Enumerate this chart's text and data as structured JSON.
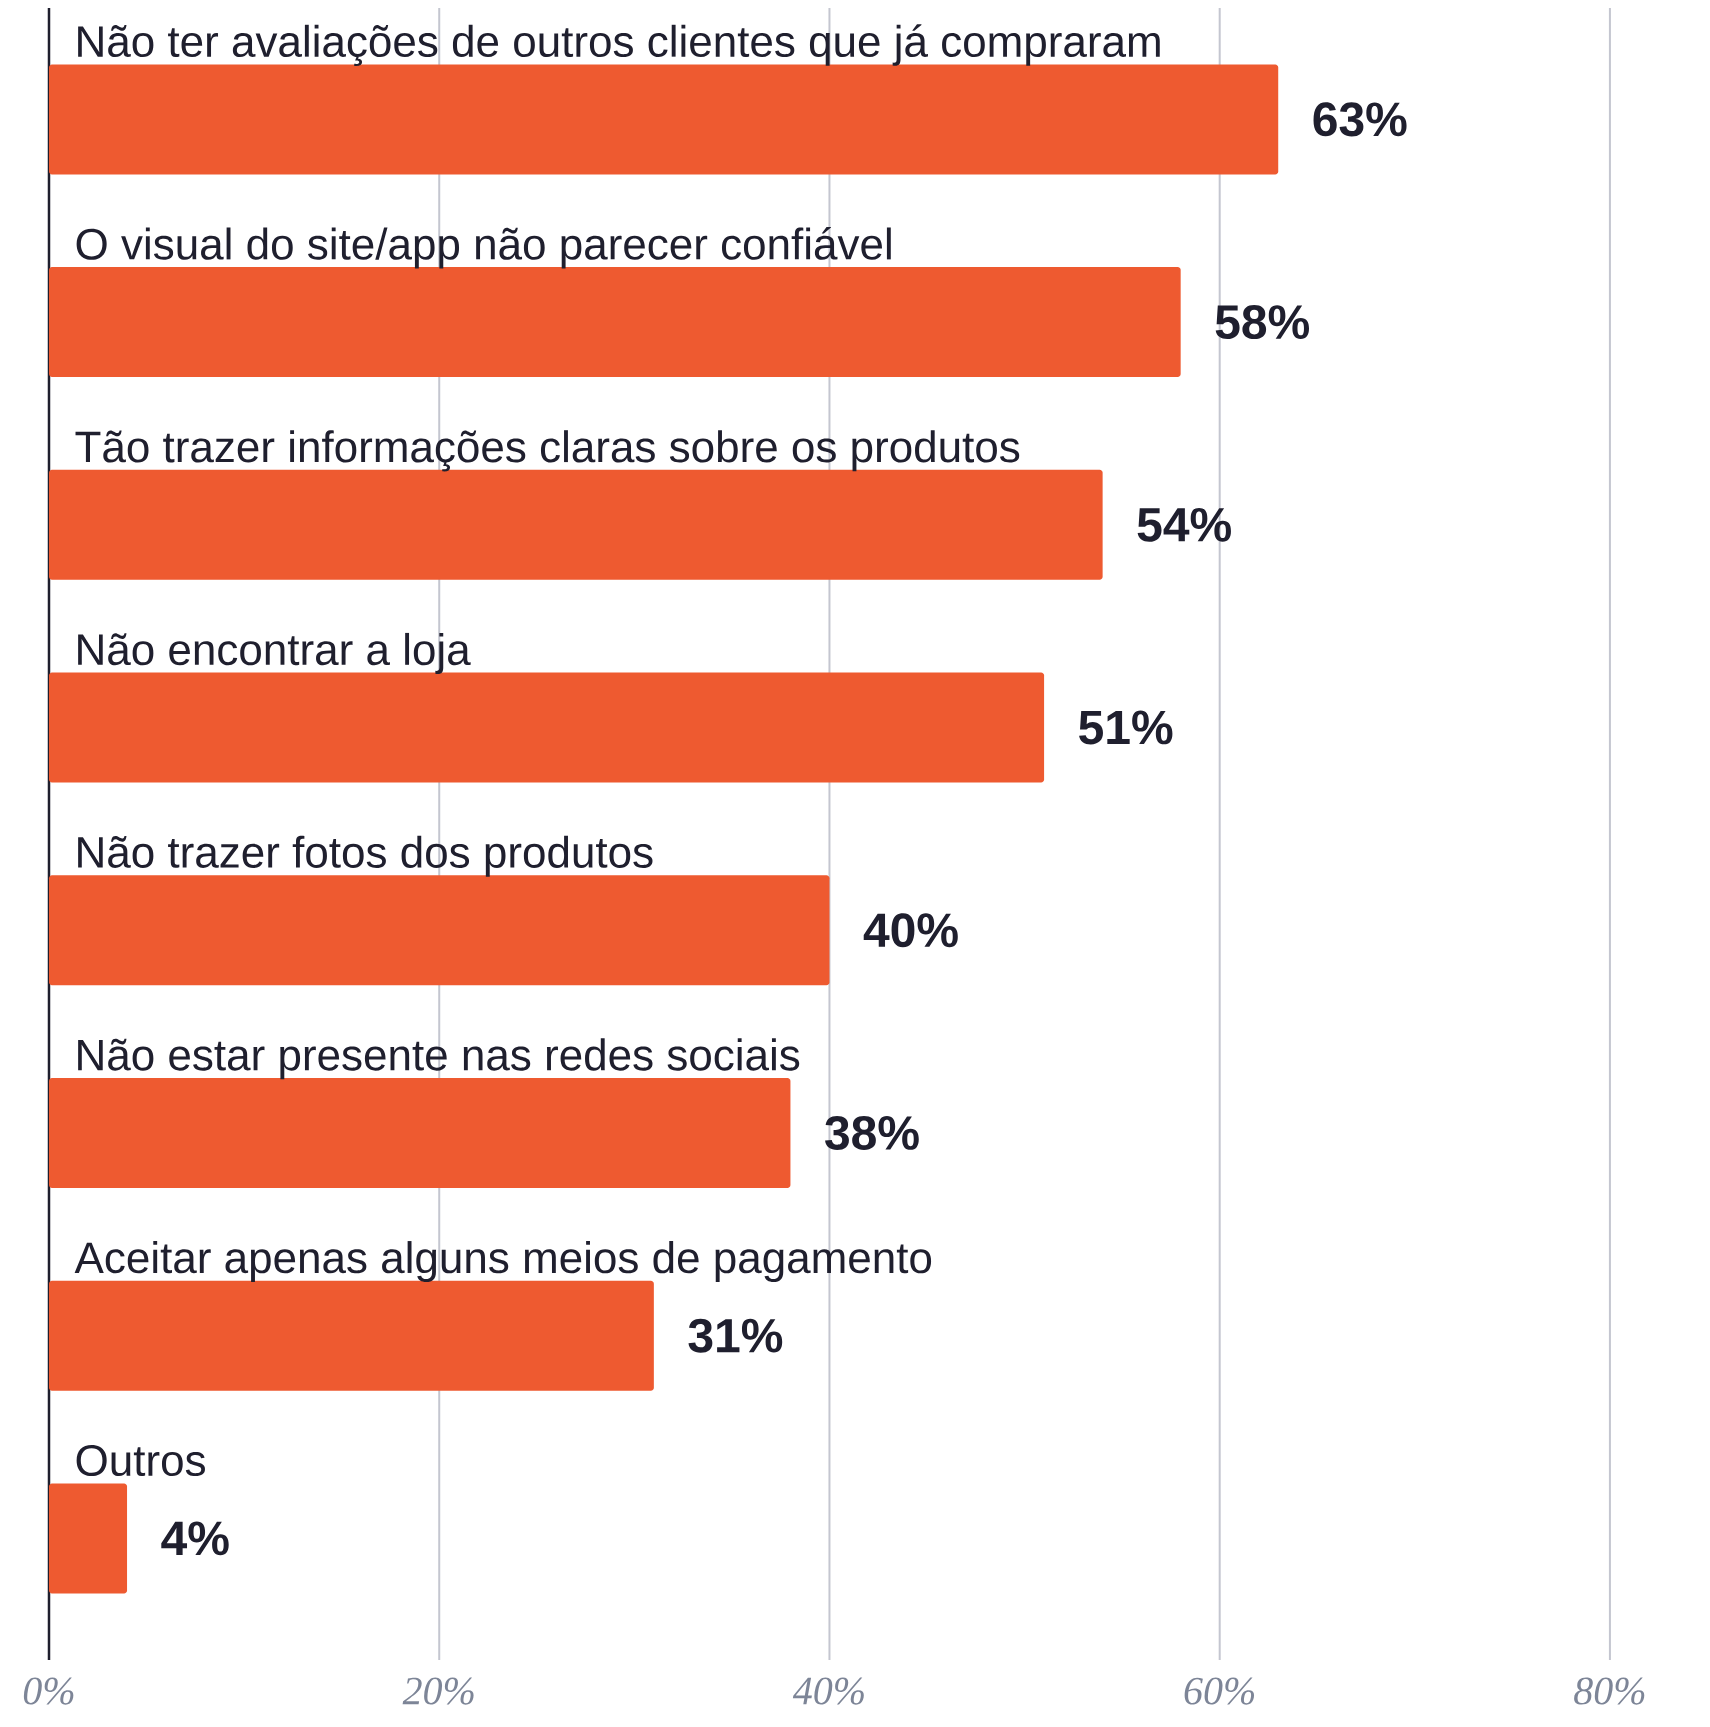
{
  "chart_data": {
    "type": "bar",
    "orientation": "horizontal",
    "categories": [
      "Não ter avaliações de outros clientes que já compraram",
      "O visual do site/app não parecer confiável",
      "Tão trazer informações claras sobre os produtos",
      "Não encontrar a loja",
      "Não trazer fotos dos produtos",
      "Não estar presente nas redes sociais",
      "Aceitar apenas alguns meios de pagamento",
      "Outros"
    ],
    "values": [
      63,
      58,
      54,
      51,
      40,
      38,
      31,
      4
    ],
    "value_labels": [
      "63%",
      "58%",
      "54%",
      "51%",
      "40%",
      "38%",
      "31%",
      "4%"
    ],
    "color": "#ee5a30",
    "xlim": [
      0,
      80
    ],
    "xticks": [
      {
        "value": 0,
        "label": "0%"
      },
      {
        "value": 20,
        "label": "20%"
      },
      {
        "value": 40,
        "label": "40%"
      },
      {
        "value": 60,
        "label": "60%"
      },
      {
        "value": 80,
        "label": "80%"
      }
    ],
    "grid": "x"
  }
}
